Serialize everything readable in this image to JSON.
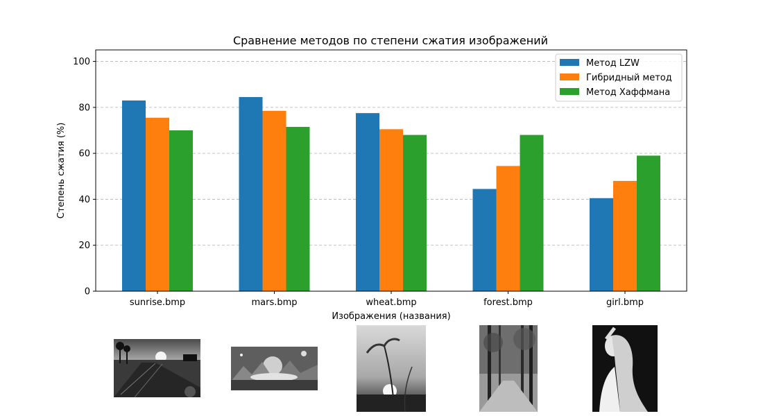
{
  "chart_data": {
    "type": "bar",
    "title": "Сравнение методов по степени сжатия изображений",
    "xlabel": "Изображения (названия)",
    "ylabel": "Степень сжатия (%)",
    "categories": [
      "sunrise.bmp",
      "mars.bmp",
      "wheat.bmp",
      "forest.bmp",
      "girl.bmp"
    ],
    "series": [
      {
        "name": "Метод LZW",
        "color": "#1f77b4",
        "values": [
          83,
          84.5,
          77.5,
          44.5,
          40.5
        ]
      },
      {
        "name": "Гибридный метод",
        "color": "#ff7f0e",
        "values": [
          75.5,
          78.5,
          70.5,
          54.5,
          48
        ]
      },
      {
        "name": "Метод Хаффмана",
        "color": "#2ca02c",
        "values": [
          70,
          71.5,
          68,
          68,
          59
        ]
      }
    ],
    "ylim": [
      0,
      105
    ],
    "yticks": [
      0,
      20,
      40,
      60,
      80,
      100
    ],
    "grid": "y-dashed",
    "legend": "top-right"
  },
  "thumbnails": [
    {
      "name": "sunrise.bmp",
      "icon": "sunrise-landscape-thumbnail"
    },
    {
      "name": "mars.bmp",
      "icon": "mountain-landscape-thumbnail"
    },
    {
      "name": "wheat.bmp",
      "icon": "wheat-ear-thumbnail"
    },
    {
      "name": "forest.bmp",
      "icon": "forest-path-thumbnail"
    },
    {
      "name": "girl.bmp",
      "icon": "girl-portrait-thumbnail"
    }
  ]
}
